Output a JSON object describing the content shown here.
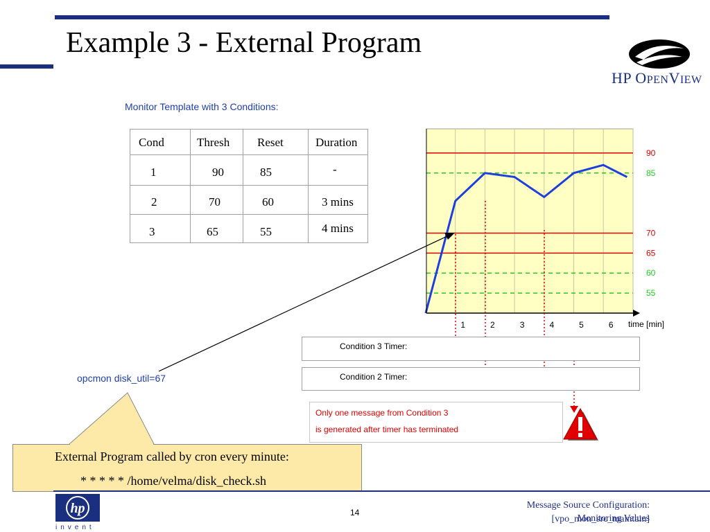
{
  "slide": {
    "title": "Example 3 - External Program",
    "subtitle": "Monitor Template with 3 Conditions:",
    "page_number": "14"
  },
  "branding": {
    "logo_text": "HP OpenView",
    "logo_text_hp": "HP O",
    "logo_text_pen": "PEN",
    "logo_text_v": "V",
    "logo_text_iew": "IEW",
    "hp_badge_text": "hp",
    "invent_text": "invent",
    "accent_color": "#1a2f80"
  },
  "table": {
    "headers": [
      "Cond",
      "Thresh",
      "Reset",
      "Duration"
    ],
    "rows": [
      [
        "1",
        "90",
        "85",
        "-"
      ],
      [
        "2",
        "70",
        "60",
        "3 mins"
      ],
      [
        "3",
        "65",
        "55",
        "4 mins"
      ]
    ]
  },
  "chart_data": {
    "type": "line",
    "x": [
      0,
      1,
      2,
      3,
      4,
      5,
      6,
      6.8
    ],
    "values": [
      50,
      78,
      85,
      84,
      79,
      85,
      87,
      84
    ],
    "x_ticks": [
      "1",
      "2",
      "3",
      "4",
      "5",
      "6"
    ],
    "xlabel": "time [min]",
    "xlim": [
      0,
      7
    ],
    "ylim": [
      50,
      95
    ],
    "threshold_lines": [
      90,
      70,
      65
    ],
    "reset_lines": [
      85,
      60,
      55
    ],
    "threshold_color": "#e00000",
    "reset_color": "#22cc22",
    "line_color": "#1f3fdd",
    "background_color": "#ffffc4",
    "grid": true
  },
  "timers": {
    "condition3": {
      "label": "Condition 3 Timer:",
      "segments": 4
    },
    "condition2": {
      "label": "Condition 2 Timer:",
      "segments": 2
    }
  },
  "message": {
    "line1": "Only one message from Condition 3",
    "line2": "is generated after timer has terminated",
    "warning_icon": "warning-icon"
  },
  "callout": {
    "opcmon": "opcmon disk_util=67",
    "line1": "External Program called by cron every minute:",
    "line2": "* * * * * /home/velma/disk_check.sh"
  },
  "footer": {
    "line1": "Message Source Configuration:",
    "line2": "[vpo_mon_src_maintain]",
    "line3": "Monitoring Values"
  }
}
